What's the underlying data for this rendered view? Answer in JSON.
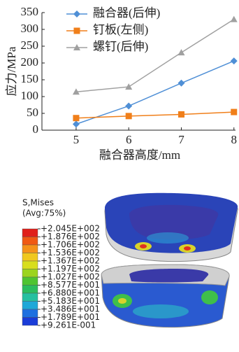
{
  "chart_data": {
    "type": "line",
    "x": [
      5,
      6,
      7,
      8
    ],
    "xlim": [
      4.35,
      8.03
    ],
    "xticks": [
      5,
      6,
      7,
      8
    ],
    "ylim": [
      0,
      350
    ],
    "yticks": [
      0,
      50,
      100,
      150,
      200,
      250,
      300,
      350
    ],
    "x_label": "融合器高度/mm",
    "y_label": "应力/MPa",
    "legend": "upper left",
    "series": [
      {
        "name": "融合器(后伸)",
        "color": "#4f8fd6",
        "marker": "diamond",
        "values": [
          18,
          72,
          140,
          206
        ]
      },
      {
        "name": "钉板(左侧)",
        "color": "#f07f1a",
        "marker": "square",
        "values": [
          36,
          42,
          47,
          54
        ]
      },
      {
        "name": "螺钉(后伸)",
        "color": "#a0a0a0",
        "marker": "triangle",
        "values": [
          114,
          129,
          231,
          330
        ]
      }
    ]
  },
  "contour_legend": {
    "title": "S,Mises",
    "subtitle": "(Avg:75%)",
    "labels": [
      "+2.045E+002",
      "+1.876E+002",
      "+1.706E+002",
      "+1.536E+002",
      "+1.367E+002",
      "+1.197E+002",
      "+1.027E+002",
      "+8.577E+001",
      "+6.880E+001",
      "+5.183E+001",
      "+3.486E+001",
      "+1.789E+001",
      "+9.261E-001"
    ]
  }
}
